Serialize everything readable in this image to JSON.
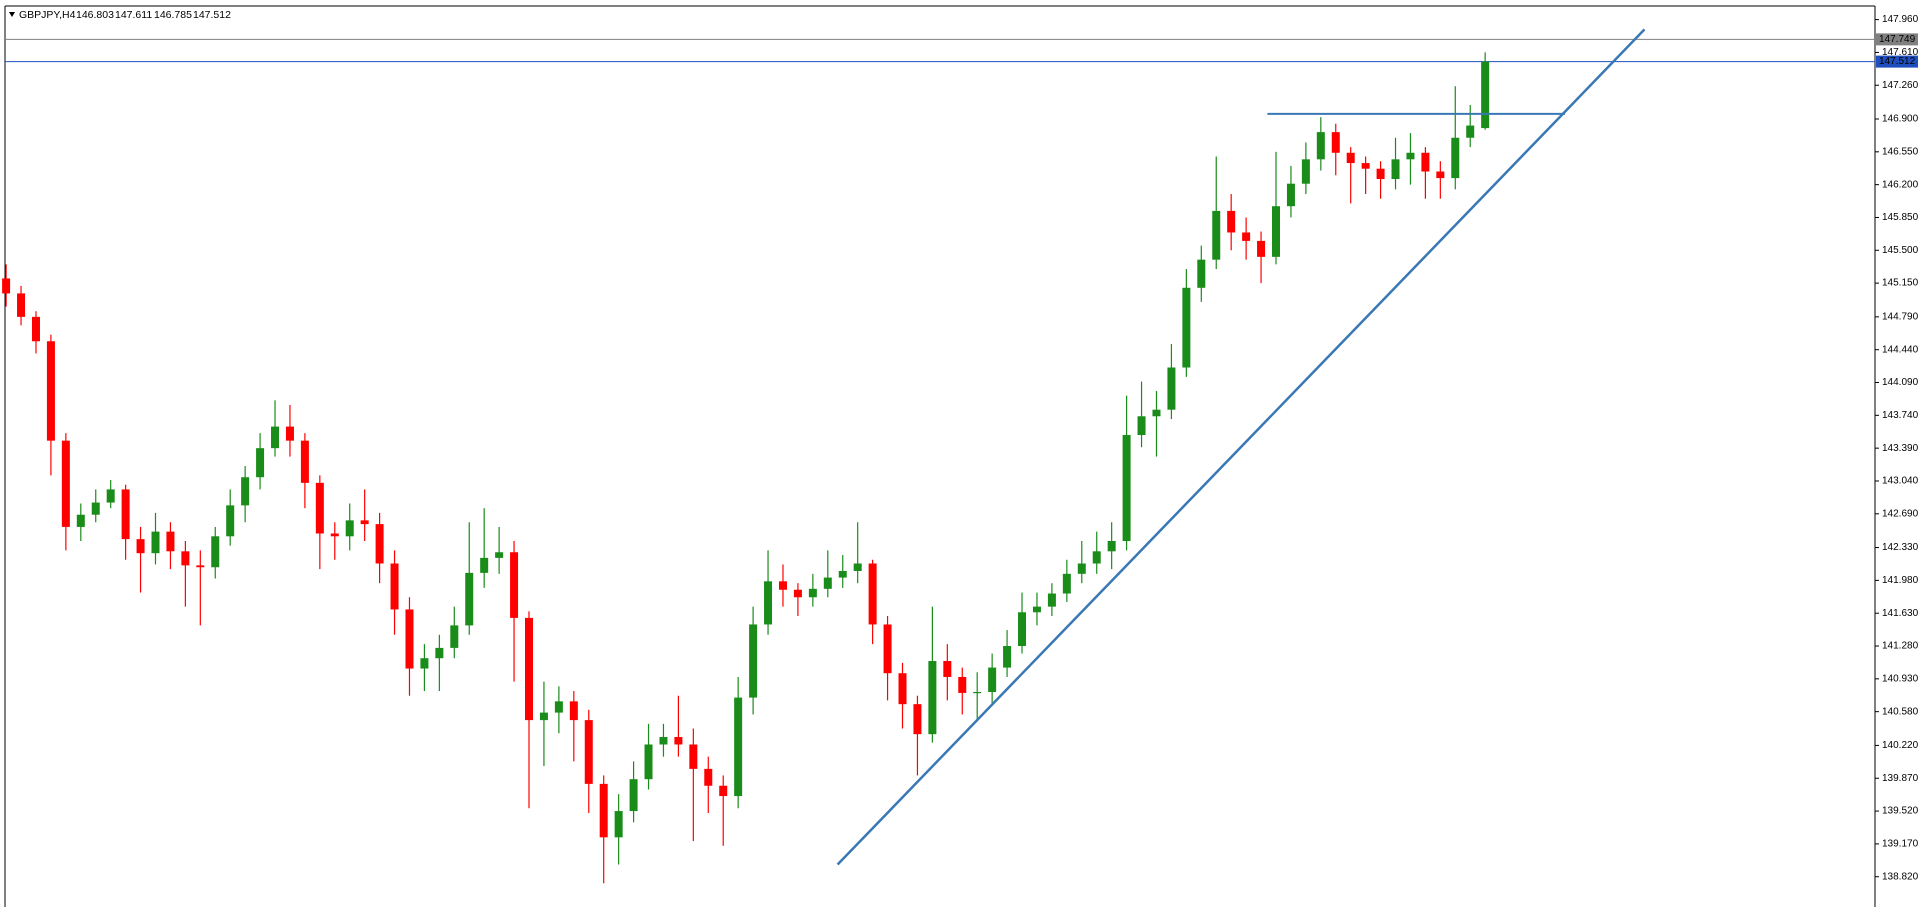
{
  "chart_data": {
    "type": "candlestick",
    "title": "GBPJPY,H4",
    "up_color": "#1a8c1a",
    "down_color": "#ff0000",
    "ylim": [
      138.497,
      148.105
    ],
    "yticks": [
      {
        "value": 147.96,
        "label": "147.960"
      },
      {
        "value": 147.61,
        "label": "147.610"
      },
      {
        "value": 147.26,
        "label": "147.260"
      },
      {
        "value": 146.9,
        "label": "146.900"
      },
      {
        "value": 146.55,
        "label": "146.550"
      },
      {
        "value": 146.2,
        "label": "146.200"
      },
      {
        "value": 145.85,
        "label": "145.850"
      },
      {
        "value": 145.5,
        "label": "145.500"
      },
      {
        "value": 145.15,
        "label": "145.150"
      },
      {
        "value": 144.79,
        "label": "144.790"
      },
      {
        "value": 144.44,
        "label": "144.440"
      },
      {
        "value": 144.09,
        "label": "144.090"
      },
      {
        "value": 143.74,
        "label": "143.740"
      },
      {
        "value": 143.39,
        "label": "143.390"
      },
      {
        "value": 143.04,
        "label": "143.040"
      },
      {
        "value": 142.69,
        "label": "142.690"
      },
      {
        "value": 142.33,
        "label": "142.330"
      },
      {
        "value": 141.98,
        "label": "141.980"
      },
      {
        "value": 141.63,
        "label": "141.630"
      },
      {
        "value": 141.28,
        "label": "141.280"
      },
      {
        "value": 140.93,
        "label": "140.930"
      },
      {
        "value": 140.58,
        "label": "140.580"
      },
      {
        "value": 140.22,
        "label": "140.220"
      },
      {
        "value": 139.87,
        "label": "139.870"
      },
      {
        "value": 139.52,
        "label": "139.520"
      },
      {
        "value": 139.17,
        "label": "139.170"
      },
      {
        "value": 138.82,
        "label": "138.820"
      }
    ],
    "price_lines": [
      {
        "value": 147.749,
        "color": "#808080"
      },
      {
        "value": 147.512,
        "color": "#1f4fbf"
      }
    ],
    "open": [
      145.2,
      145.04,
      144.79,
      144.53,
      143.47,
      142.55,
      142.68,
      142.81,
      142.95,
      142.42,
      142.27,
      142.5,
      142.29,
      142.14,
      142.12,
      142.45,
      142.78,
      143.08,
      143.39,
      143.62,
      143.47,
      143.02,
      142.48,
      142.45,
      142.62,
      142.58,
      142.16,
      141.67,
      141.04,
      141.15,
      141.26,
      141.5,
      142.06,
      142.22,
      142.28,
      141.58,
      140.49,
      140.57,
      140.69,
      140.49,
      139.81,
      139.24,
      139.52,
      139.86,
      140.23,
      140.31,
      140.23,
      139.97,
      139.79,
      139.68,
      140.73,
      141.51,
      141.97,
      141.88,
      141.8,
      141.89,
      142.01,
      142.08,
      142.16,
      141.51,
      140.99,
      140.66,
      140.34,
      141.12,
      140.95,
      140.78,
      140.79,
      141.05,
      141.28,
      141.64,
      141.7,
      141.84,
      142.05,
      142.16,
      142.29,
      142.4,
      143.53,
      143.73,
      143.8,
      144.25,
      145.1,
      145.4,
      145.92,
      145.69,
      145.6,
      145.43,
      145.97,
      146.21,
      146.47,
      146.76,
      146.54,
      146.43,
      146.37,
      146.26,
      146.47,
      146.54,
      146.34,
      146.27,
      146.7,
      146.803
    ],
    "high": [
      145.35,
      145.12,
      144.85,
      144.6,
      143.55,
      142.8,
      142.95,
      143.05,
      143.0,
      142.55,
      142.7,
      142.6,
      142.4,
      142.3,
      142.55,
      142.95,
      143.2,
      143.55,
      143.9,
      143.85,
      143.55,
      143.1,
      142.6,
      142.8,
      142.95,
      142.7,
      142.3,
      141.8,
      141.3,
      141.4,
      141.7,
      142.6,
      142.75,
      142.55,
      142.4,
      141.65,
      140.9,
      140.85,
      140.8,
      140.6,
      139.9,
      139.7,
      140.05,
      140.45,
      140.45,
      140.75,
      140.4,
      140.1,
      139.9,
      140.95,
      141.7,
      142.3,
      142.15,
      141.95,
      142.05,
      142.3,
      142.25,
      142.6,
      142.2,
      141.6,
      141.1,
      140.75,
      141.7,
      141.3,
      141.05,
      141.0,
      141.2,
      141.45,
      141.85,
      141.85,
      141.95,
      142.2,
      142.4,
      142.5,
      142.6,
      143.95,
      144.1,
      144.0,
      144.5,
      145.3,
      145.55,
      146.5,
      146.1,
      145.85,
      145.7,
      146.55,
      146.4,
      146.65,
      146.92,
      146.85,
      146.6,
      146.5,
      146.45,
      146.7,
      146.75,
      146.6,
      146.45,
      147.25,
      147.05,
      147.611
    ],
    "low": [
      144.9,
      144.7,
      144.4,
      143.1,
      142.3,
      142.4,
      142.6,
      142.75,
      142.2,
      141.85,
      142.15,
      142.1,
      141.7,
      141.5,
      142.0,
      142.35,
      142.6,
      142.95,
      143.3,
      143.3,
      142.75,
      142.1,
      142.2,
      142.3,
      142.4,
      141.95,
      141.4,
      140.75,
      140.8,
      140.8,
      141.15,
      141.4,
      141.9,
      142.05,
      140.9,
      139.55,
      140.0,
      140.35,
      140.05,
      139.5,
      138.75,
      138.95,
      139.4,
      139.75,
      140.1,
      140.1,
      139.2,
      139.5,
      139.15,
      139.55,
      140.55,
      141.4,
      141.7,
      141.6,
      141.7,
      141.8,
      141.9,
      141.95,
      141.3,
      140.7,
      140.4,
      139.9,
      140.25,
      140.7,
      140.55,
      140.5,
      140.65,
      140.95,
      141.2,
      141.5,
      141.6,
      141.75,
      141.95,
      142.05,
      142.1,
      142.3,
      143.4,
      143.3,
      143.7,
      144.15,
      144.95,
      145.3,
      145.5,
      145.4,
      145.15,
      145.35,
      145.85,
      146.1,
      146.35,
      146.3,
      146.0,
      146.1,
      146.05,
      146.15,
      146.2,
      146.05,
      146.05,
      146.15,
      146.6,
      146.785
    ],
    "close": [
      145.04,
      144.79,
      144.53,
      143.47,
      142.55,
      142.68,
      142.81,
      142.95,
      142.42,
      142.27,
      142.5,
      142.29,
      142.14,
      142.12,
      142.45,
      142.78,
      143.08,
      143.39,
      143.62,
      143.47,
      143.02,
      142.48,
      142.45,
      142.62,
      142.58,
      142.16,
      141.67,
      141.04,
      141.15,
      141.26,
      141.5,
      142.06,
      142.22,
      142.28,
      141.58,
      140.49,
      140.57,
      140.69,
      140.49,
      139.81,
      139.24,
      139.52,
      139.86,
      140.23,
      140.31,
      140.23,
      139.97,
      139.79,
      139.68,
      140.73,
      141.51,
      141.97,
      141.88,
      141.8,
      141.89,
      142.01,
      142.08,
      142.16,
      141.51,
      140.99,
      140.66,
      140.34,
      141.12,
      140.95,
      140.78,
      140.79,
      141.05,
      141.28,
      141.64,
      141.7,
      141.84,
      142.05,
      142.16,
      142.29,
      142.4,
      143.53,
      143.73,
      143.8,
      144.25,
      145.1,
      145.4,
      145.92,
      145.69,
      145.6,
      145.43,
      145.97,
      146.21,
      146.47,
      146.76,
      146.54,
      146.43,
      146.37,
      146.26,
      146.47,
      146.54,
      146.34,
      146.27,
      146.7,
      146.83,
      147.512
    ]
  }
}
